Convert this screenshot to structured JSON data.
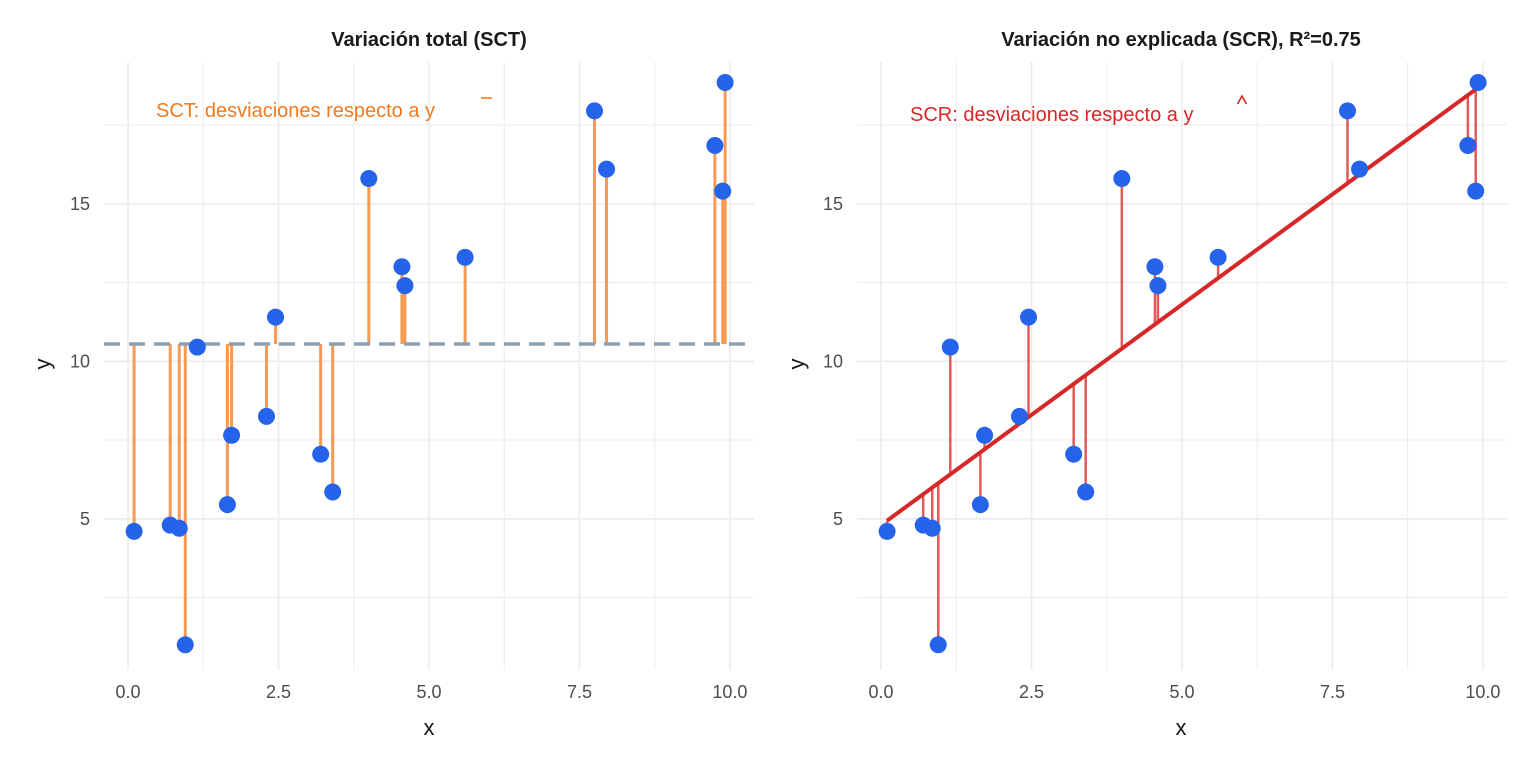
{
  "colors": {
    "points": "#2563eb",
    "sct_segments": "#f59a55",
    "sct_text": "#f07a1f",
    "mean_line": "#8c9fb3",
    "scr_segments": "#e05a5a",
    "scr_text": "#dc2626",
    "fit_line": "#d62828",
    "grid": "#ebebeb"
  },
  "chart_data": [
    {
      "type": "scatter",
      "title": "Variación total (SCT)",
      "xlabel": "x",
      "ylabel": "y",
      "xlim": [
        -0.4,
        10.4
      ],
      "ylim": [
        0.2,
        19.5
      ],
      "xticks": [
        0.0,
        2.5,
        5.0,
        7.5,
        10.0
      ],
      "xtick_labels": [
        "0.0",
        "2.5",
        "5.0",
        "7.5",
        "10.0"
      ],
      "yticks": [
        5,
        10,
        15
      ],
      "ytick_labels": [
        "5",
        "10",
        "15"
      ],
      "grid": true,
      "annotation": "SCT: desviaciones respecto a ",
      "annotation_symbol": "y",
      "annotation_accent": "bar",
      "reference": "mean",
      "mean_y": 10.55,
      "points": {
        "x": [
          0.1,
          0.7,
          0.85,
          0.95,
          1.15,
          1.65,
          1.72,
          2.3,
          2.45,
          3.2,
          3.4,
          4.0,
          4.55,
          4.6,
          5.6,
          7.75,
          7.95,
          9.75,
          9.88,
          9.92
        ],
        "y": [
          4.6,
          4.8,
          4.7,
          1.0,
          10.45,
          5.45,
          7.65,
          8.25,
          11.4,
          7.05,
          5.85,
          15.8,
          13.0,
          12.4,
          13.3,
          17.95,
          16.1,
          16.85,
          15.4,
          18.85
        ]
      }
    },
    {
      "type": "scatter",
      "title": "Variación no explicada (SCR), R²=0.75",
      "xlabel": "x",
      "ylabel": "y",
      "xlim": [
        -0.4,
        10.4
      ],
      "ylim": [
        0.2,
        19.5
      ],
      "xticks": [
        0.0,
        2.5,
        5.0,
        7.5,
        10.0
      ],
      "xtick_labels": [
        "0.0",
        "2.5",
        "5.0",
        "7.5",
        "10.0"
      ],
      "yticks": [
        5,
        10,
        15
      ],
      "ytick_labels": [
        "5",
        "10",
        "15"
      ],
      "grid": true,
      "annotation": "SCR: desviaciones respecto a ",
      "annotation_symbol": "y",
      "annotation_accent": "hat",
      "reference": "fit",
      "fit": {
        "intercept": 4.8,
        "slope": 1.4
      },
      "points": {
        "x": [
          0.1,
          0.7,
          0.85,
          0.95,
          1.15,
          1.65,
          1.72,
          2.3,
          2.45,
          3.2,
          3.4,
          4.0,
          4.55,
          4.6,
          5.6,
          7.75,
          7.95,
          9.75,
          9.88,
          9.92
        ],
        "y": [
          4.6,
          4.8,
          4.7,
          1.0,
          10.45,
          5.45,
          7.65,
          8.25,
          11.4,
          7.05,
          5.85,
          15.8,
          13.0,
          12.4,
          13.3,
          17.95,
          16.1,
          16.85,
          15.4,
          18.85
        ]
      }
    }
  ]
}
